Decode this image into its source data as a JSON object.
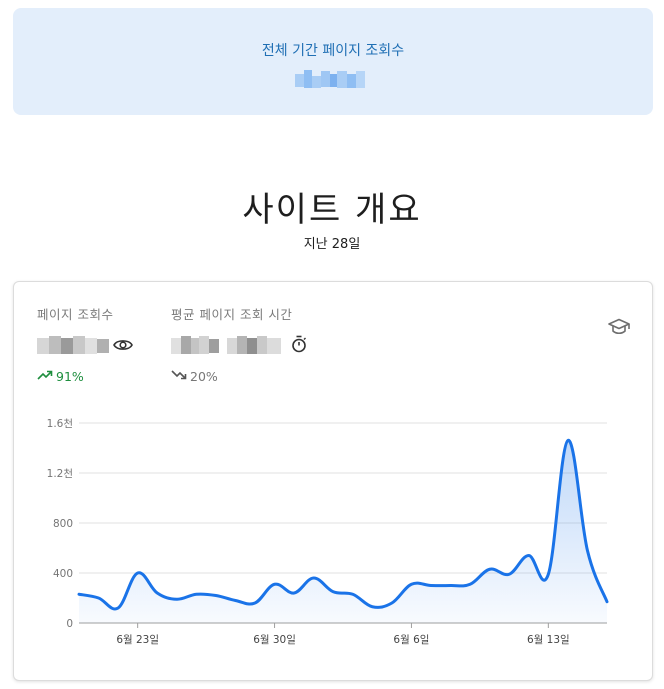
{
  "summary": {
    "total_views_label": "전체 기간 페이지 조회수"
  },
  "overview": {
    "title": "사이트 개요",
    "period": "지난 28일"
  },
  "metrics": {
    "views_label": "페이지 조회수",
    "views_change": "91%",
    "avg_time_label": "평균 페이지 조회 시간",
    "avg_time_change": "20%"
  },
  "icons": {
    "views": "eye-icon",
    "time": "stopwatch-icon",
    "views_trend": "trending-up-icon",
    "time_trend": "trending-down-icon",
    "insights": "graduation-cap-icon"
  },
  "colors": {
    "accent": "#1a73e8",
    "banner_bg": "#e3eefb",
    "banner_text": "#1f6fb4",
    "positive": "#1e8e3e",
    "negative": "#777777"
  },
  "chart_data": {
    "type": "area",
    "ylim": [
      0,
      1600
    ],
    "y_ticks": [
      {
        "value": 0,
        "label": "0"
      },
      {
        "value": 400,
        "label": "400"
      },
      {
        "value": 800,
        "label": "800"
      },
      {
        "value": 1200,
        "label": "1.2천"
      },
      {
        "value": 1600,
        "label": "1.6천"
      }
    ],
    "x_labels": [
      {
        "index": 3,
        "label": "6월 23일"
      },
      {
        "index": 10,
        "label": "6월 30일"
      },
      {
        "index": 17,
        "label": "6월 6일"
      },
      {
        "index": 24,
        "label": "6월 13일"
      }
    ],
    "values": [
      230,
      200,
      120,
      400,
      240,
      190,
      230,
      220,
      180,
      160,
      310,
      240,
      360,
      250,
      230,
      130,
      160,
      310,
      300,
      300,
      310,
      430,
      390,
      540,
      390,
      1460,
      580,
      170
    ],
    "grid": true,
    "legend": "none"
  }
}
